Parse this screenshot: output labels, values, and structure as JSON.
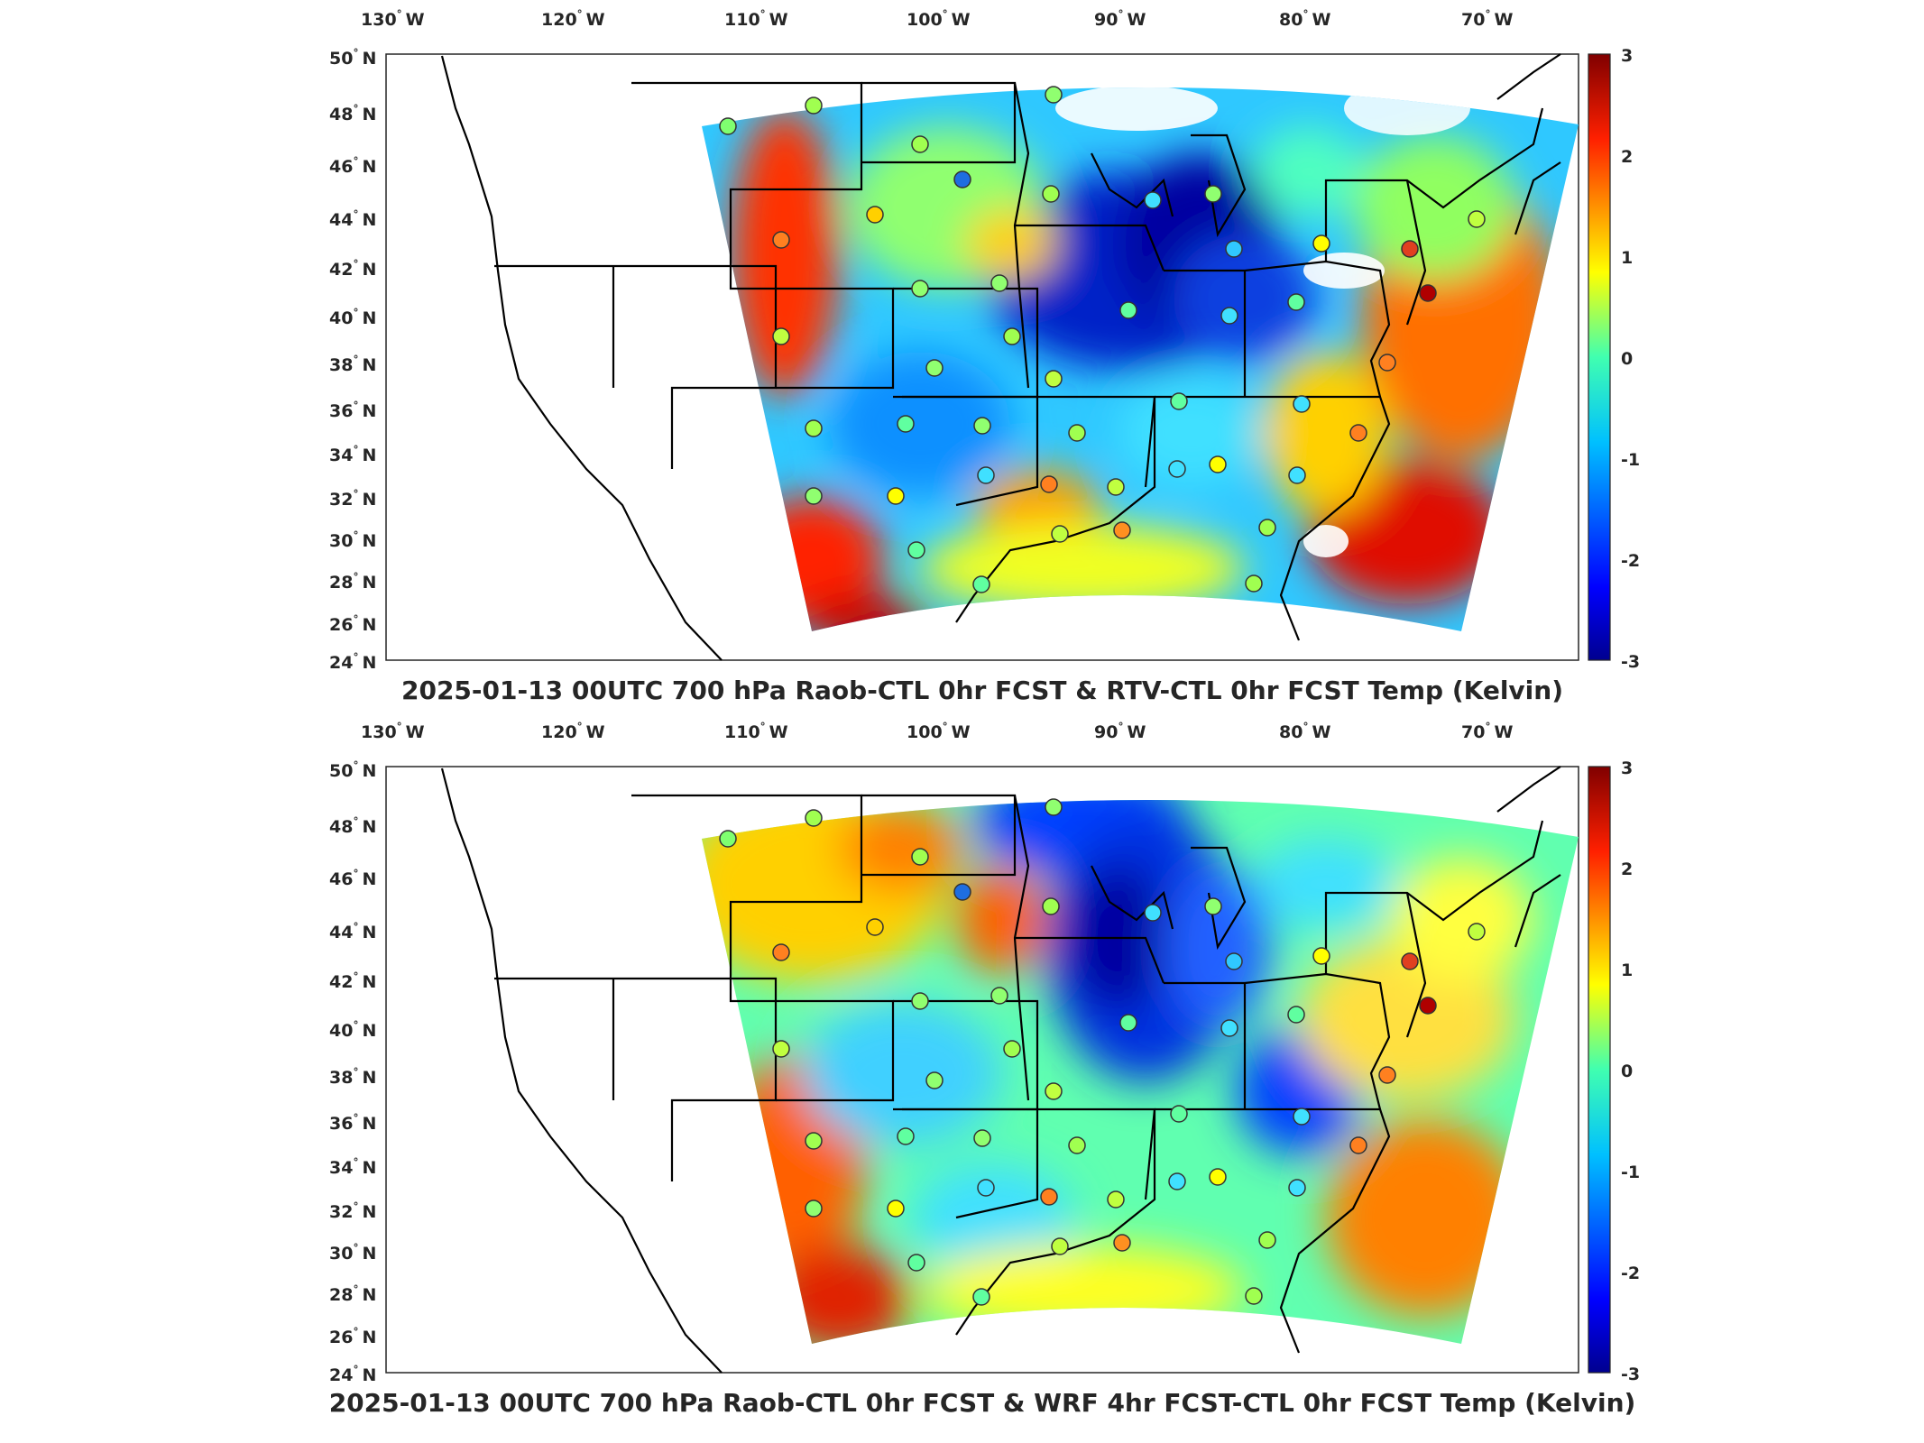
{
  "panels": [
    {
      "id": "top",
      "title": "2025-01-13 00UTC 700 hPa Raob-CTL 0hr FCST & RTV-CTL 0hr FCST Temp (Kelvin)"
    },
    {
      "id": "bottom",
      "title": "2025-01-13 00UTC 700 hPa Raob-CTL 0hr FCST & WRF 4hr FCST-CTL 0hr FCST Temp (Kelvin)"
    }
  ],
  "axes": {
    "lon_ticks": [
      "130",
      "120",
      "110",
      "100",
      "90",
      "80",
      "70"
    ],
    "lon_suffix": "W",
    "lat_ticks": [
      "50",
      "48",
      "46",
      "44",
      "42",
      "40",
      "38",
      "36",
      "34",
      "32",
      "30",
      "28",
      "26",
      "24"
    ],
    "lat_suffix": "N",
    "degree_symbol": "°"
  },
  "colorbar": {
    "ticks": [
      "3",
      "2",
      "1",
      "0",
      "-1",
      "-2",
      "-3"
    ],
    "range": [
      -3,
      3
    ],
    "colormap": "jet",
    "colors": [
      "#00008f",
      "#0000ff",
      "#00a0ff",
      "#40ffc0",
      "#ffff00",
      "#ff8000",
      "#ff0000",
      "#800000"
    ]
  },
  "map_colors": {
    "land_outline": "#000000",
    "background": "#ffffff",
    "station_edge": "#333333"
  }
}
